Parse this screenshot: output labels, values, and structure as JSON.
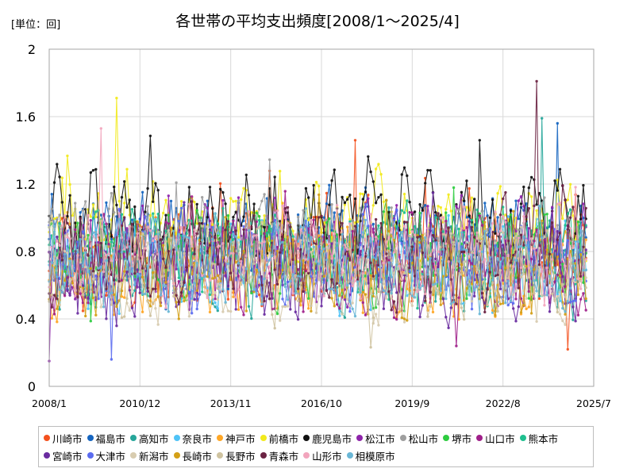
{
  "unit_label": "[単位：回]",
  "chart_data": {
    "type": "line",
    "title": "各世帯の平均支出頻度[2008/1～2025/4]",
    "xlabel": "",
    "ylabel": "",
    "ylim": [
      0,
      2
    ],
    "yticks": [
      "0",
      "0.4",
      "0.8",
      "1.2",
      "1.6",
      "2"
    ],
    "x_range": [
      "2008/1",
      "2025/7"
    ],
    "xticks": [
      "2008/1",
      "2010/12",
      "2013/11",
      "2016/10",
      "2019/9",
      "2022/8",
      "2025/7"
    ],
    "grid": true,
    "legend_position": "bottom",
    "series": [
      {
        "name": "川崎市",
        "color": "#f4511e",
        "base": 0.78
      },
      {
        "name": "福島市",
        "color": "#1565c0",
        "base": 0.88
      },
      {
        "name": "高知市",
        "color": "#26a69a",
        "base": 0.72
      },
      {
        "name": "奈良市",
        "color": "#4fc3f7",
        "base": 0.74
      },
      {
        "name": "神戸市",
        "color": "#ffa726",
        "base": 0.7
      },
      {
        "name": "前橋市",
        "color": "#f2ea1c",
        "base": 0.98
      },
      {
        "name": "鹿児島市",
        "color": "#111111",
        "base": 1.0
      },
      {
        "name": "松江市",
        "color": "#8e24aa",
        "base": 0.8
      },
      {
        "name": "松山市",
        "color": "#9e9e9e",
        "base": 0.82
      },
      {
        "name": "堺市",
        "color": "#2ecc40",
        "base": 0.76
      },
      {
        "name": "山口市",
        "color": "#a0208a",
        "base": 0.72
      },
      {
        "name": "熊本市",
        "color": "#1fbf8f",
        "base": 0.78
      },
      {
        "name": "宮崎市",
        "color": "#6a2ca0",
        "base": 0.68
      },
      {
        "name": "大津市",
        "color": "#5b6cf0",
        "base": 0.74
      },
      {
        "name": "新潟市",
        "color": "#d8ccb0",
        "base": 0.66
      },
      {
        "name": "長崎市",
        "color": "#d4a017",
        "base": 0.66
      },
      {
        "name": "長野市",
        "color": "#cfc3a0",
        "base": 0.7
      },
      {
        "name": "青森市",
        "color": "#6b2343",
        "base": 0.78
      },
      {
        "name": "山形市",
        "color": "#f2a5bd",
        "base": 0.78
      },
      {
        "name": "相模原市",
        "color": "#6ab7d6",
        "base": 0.72
      }
    ],
    "annotations": [
      {
        "series": "前橋市",
        "x": "2010/3",
        "y": 1.71
      },
      {
        "series": "青森市",
        "x": "2023/9",
        "y": 1.81
      },
      {
        "series": "山形市",
        "x": "2009/9",
        "y": 1.53
      },
      {
        "series": "高知市",
        "x": "2023/11",
        "y": 1.59
      },
      {
        "series": "鹿児島市",
        "x": "2021/11",
        "y": 1.46
      },
      {
        "series": "川崎市",
        "x": "2017/11",
        "y": 1.46
      },
      {
        "series": "福島市",
        "x": "2024/5",
        "y": 1.56
      },
      {
        "series": "川崎市",
        "x": "2024/9",
        "y": 0.22
      },
      {
        "series": "松江市",
        "x": "2008/1",
        "y": 0.15
      },
      {
        "series": "大津市",
        "x": "2010/1",
        "y": 0.16
      }
    ]
  }
}
